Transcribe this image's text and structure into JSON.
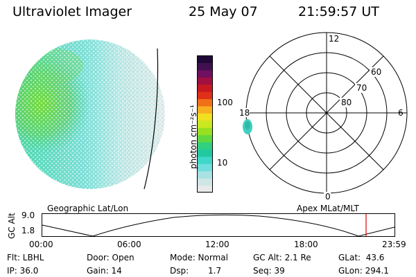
{
  "header": {
    "instrument": "Ultraviolet Imager",
    "date": "25 May 07",
    "time": "21:59:57 UT"
  },
  "colorbar": {
    "unit_label": "photon cm⁻²s⁻¹",
    "ticks": [
      "100",
      "10"
    ],
    "colors": [
      "#e8eaea",
      "#cfe6e6",
      "#a8e2e2",
      "#70dede",
      "#3fd8c8",
      "#22c8a0",
      "#30d080",
      "#60d840",
      "#98e020",
      "#c8e820",
      "#f0e020",
      "#f8b020",
      "#f07018",
      "#e03018",
      "#c81820",
      "#a01040",
      "#701060",
      "#401050",
      "#200838"
    ]
  },
  "polar": {
    "labels": {
      "mlt_12": "12",
      "mlt_18": "18",
      "mlt_6": "6",
      "mlt_0": "0",
      "lat_60": "60",
      "lat_70": "70",
      "lat_80": "80"
    }
  },
  "timeline": {
    "left_label": "Geographic Lat/Lon",
    "right_label": "Apex MLat/MLT",
    "axis_label": "GC Alt",
    "alt_top": "9.0",
    "alt_bottom": "1.8",
    "time_ticks": [
      "00:00",
      "06:00",
      "12:00",
      "18:00",
      "23:59"
    ],
    "marker_color": "#e00000"
  },
  "status": {
    "flt": "Flt: LBHL",
    "door": "Door: Open",
    "mode": "Mode: Normal",
    "gc_alt": "GC Alt: 2.1 Re",
    "glat": "GLat:  43.6",
    "ip": "IP: 36.0",
    "gain": "Gain: 14",
    "dsp_label": "Dsp:",
    "dsp_value": "1.7",
    "seq": "Seq: 39",
    "glon": "GLon: 294.1"
  }
}
